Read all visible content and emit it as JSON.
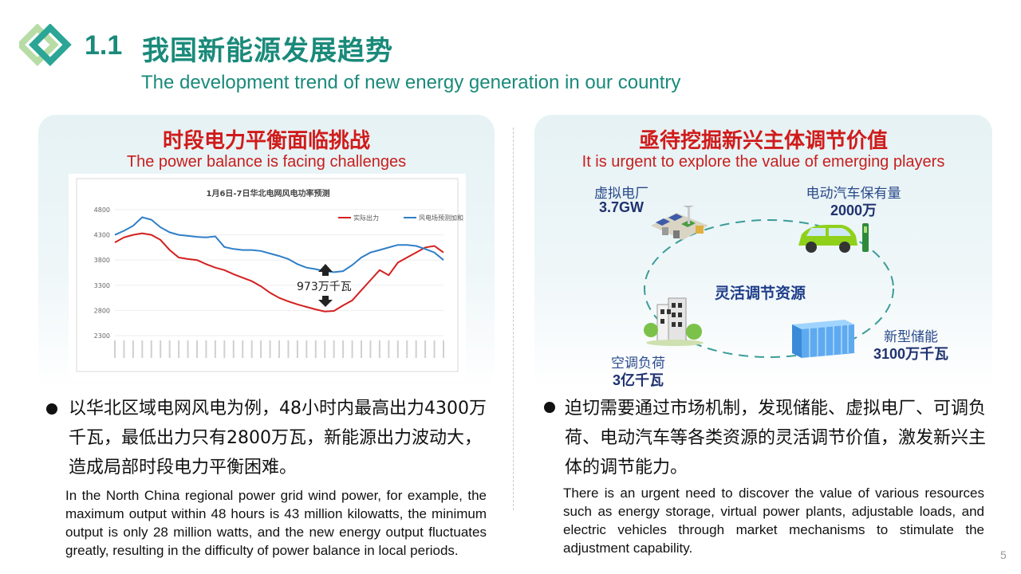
{
  "header": {
    "number": "1.1",
    "title_cn": "我国新能源发展趋势",
    "title_en": "The development trend of new energy generation  in our country"
  },
  "left_panel": {
    "heading_cn": "时段电力平衡面临挑战",
    "heading_en": "The power balance is facing challenges",
    "bullet_cn": "以华北区域电网风电为例，48小时内最高出力4300万千瓦，最低出力只有2800万瓦，新能源出力波动大，造成局部时段电力平衡困难。",
    "bullet_en": "In the North China regional power grid wind power, for example, the maximum output within 48 hours is 43 million kilowatts, the minimum output is only 28 million watts, and the new energy output fluctuates greatly, resulting in the difficulty of power balance in local periods."
  },
  "right_panel": {
    "heading_cn": "亟待挖掘新兴主体调节价值",
    "heading_en": "It is urgent to explore the value of emerging players",
    "center_label": "灵活调节资源",
    "resources": [
      {
        "name": "虚拟电厂",
        "value": "3.7GW",
        "icon": "virtual-power-plant-icon"
      },
      {
        "name": "电动汽车保有量",
        "value": "2000万",
        "icon": "electric-car-icon"
      },
      {
        "name": "空调负荷",
        "value": "3亿千瓦",
        "icon": "building-icon"
      },
      {
        "name": "新型储能",
        "value": "3100万千瓦",
        "icon": "battery-storage-icon"
      }
    ],
    "bullet_cn": "迫切需要通过市场机制，发现储能、虚拟电厂、可调负荷、电动汽车等各类资源的灵活调节价值，激发新兴主体的调节能力。",
    "bullet_en": "There is an urgent need to discover the value of various resources such as energy storage, virtual power plants, adjustable loads, and electric vehicles through market mechanisms to stimulate the adjustment capability."
  },
  "page_number": "5",
  "chart_data": {
    "type": "line",
    "title": "1月6日-7日华北电网风电功率预测",
    "ylim": [
      2300,
      4800
    ],
    "yticks": [
      2300,
      2800,
      3300,
      3800,
      4300,
      4800
    ],
    "legend_position": "top-right",
    "annotation": "973万千瓦",
    "series": [
      {
        "name": "实际出力",
        "color": "#d42020",
        "values": [
          4150,
          4250,
          4300,
          4330,
          4300,
          4200,
          4000,
          3850,
          3820,
          3800,
          3720,
          3650,
          3600,
          3520,
          3450,
          3380,
          3280,
          3150,
          3050,
          2980,
          2920,
          2870,
          2820,
          2780,
          2790,
          2900,
          3000,
          3200,
          3400,
          3600,
          3500,
          3750,
          3850,
          3950,
          4050,
          4080,
          3950
        ]
      },
      {
        "name": "风电场预测加和",
        "color": "#2f7fc8",
        "values": [
          4300,
          4380,
          4480,
          4650,
          4600,
          4450,
          4350,
          4300,
          4280,
          4260,
          4250,
          4270,
          4060,
          4020,
          4000,
          4000,
          3980,
          3930,
          3880,
          3820,
          3720,
          3650,
          3620,
          3580,
          3560,
          3580,
          3700,
          3850,
          3950,
          4000,
          4050,
          4100,
          4100,
          4080,
          4020,
          3950,
          3800
        ]
      }
    ]
  },
  "colors": {
    "accent": "#1a8a7a",
    "heading_red": "#d01b1b",
    "resource_blue": "#1f3270"
  }
}
